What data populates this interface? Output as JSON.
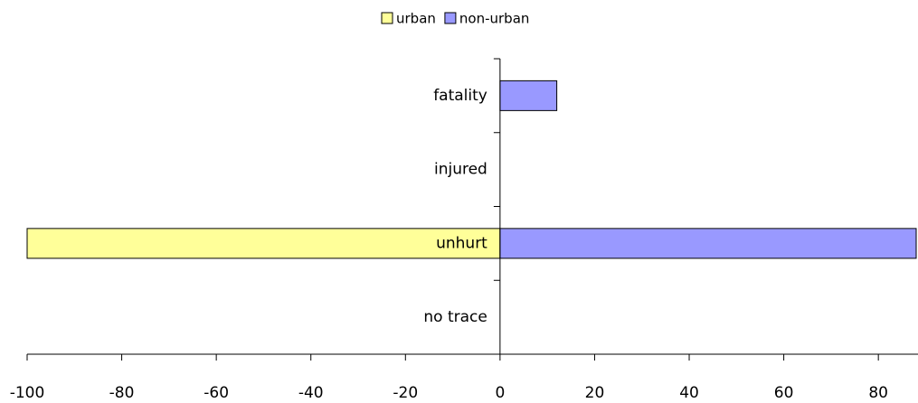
{
  "chart_data": {
    "type": "hbar",
    "categories": [
      "fatality",
      "injured",
      "unhurt",
      "no trace"
    ],
    "series": [
      {
        "name": "urban",
        "color": "#ffff99",
        "values": [
          0,
          0,
          -100,
          0
        ]
      },
      {
        "name": "non-urban",
        "color": "#9999ff",
        "values": [
          12,
          0,
          88,
          0
        ]
      }
    ],
    "xlim": [
      -100,
      88
    ],
    "xticks": [
      -100,
      -80,
      -60,
      -40,
      -20,
      0,
      20,
      40,
      60,
      80
    ],
    "legend": "top"
  }
}
